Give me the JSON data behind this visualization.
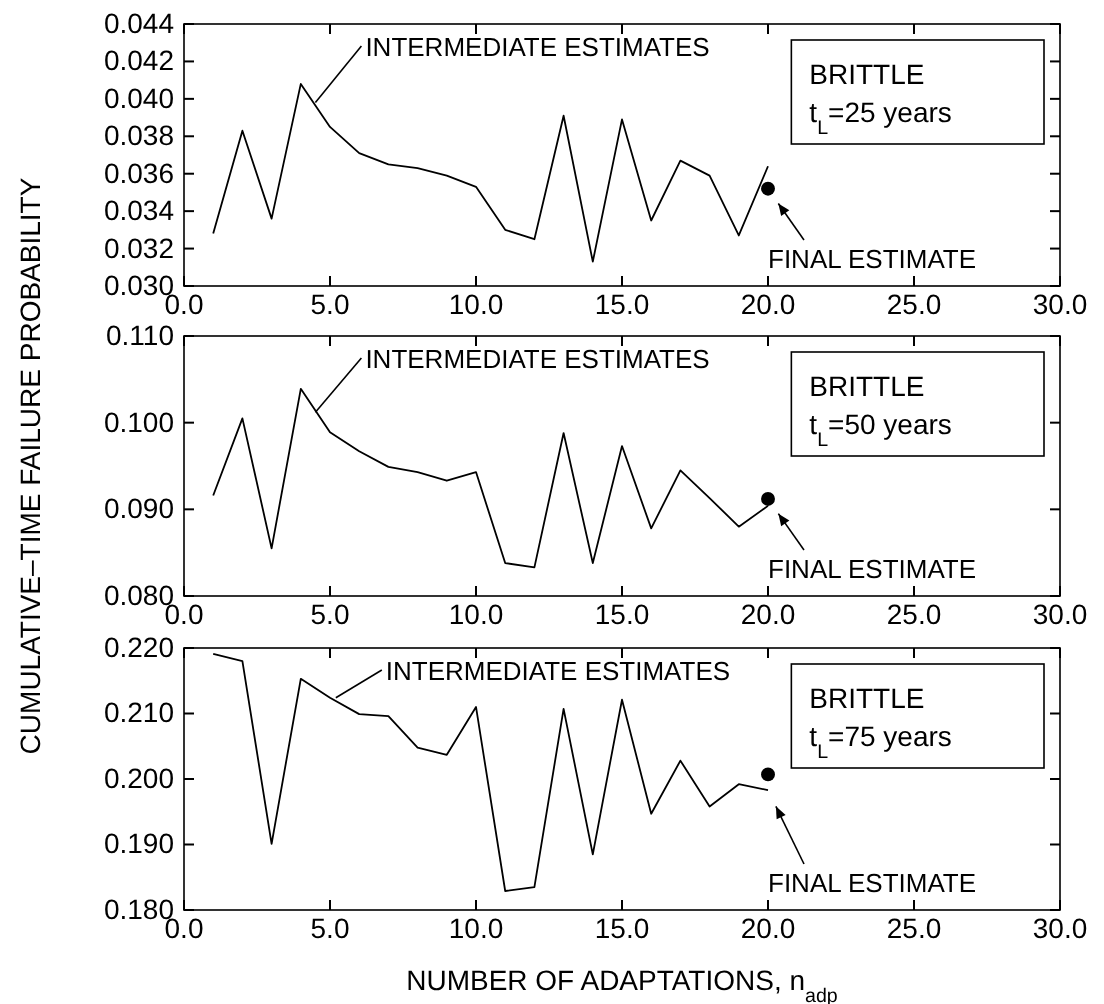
{
  "chart_data": [
    {
      "type": "line",
      "xlim": [
        0,
        30
      ],
      "xticks": [
        {
          "value": 0,
          "label": "0.0"
        },
        {
          "value": 5,
          "label": "5.0"
        },
        {
          "value": 10,
          "label": "10.0"
        },
        {
          "value": 15,
          "label": "15.0"
        },
        {
          "value": 20,
          "label": "20.0"
        },
        {
          "value": 25,
          "label": "25.0"
        },
        {
          "value": 30,
          "label": "30.0"
        }
      ],
      "ylim": [
        0.03,
        0.044
      ],
      "yticks": [
        {
          "value": 0.03,
          "label": "0.030"
        },
        0.032,
        0.034,
        0.036,
        0.038,
        {
          "value": 0.04,
          "label": "0.040"
        },
        0.042,
        0.044
      ],
      "series": [
        {
          "color": "#000000",
          "x": [
            1,
            2,
            3,
            4,
            5,
            6,
            7,
            8,
            9,
            10,
            11,
            12,
            13,
            14,
            15,
            16,
            17,
            18,
            19,
            20
          ],
          "values": [
            0.0328,
            0.0383,
            0.0336,
            0.0408,
            0.0385,
            0.0371,
            0.0365,
            0.0363,
            0.0359,
            0.0353,
            0.033,
            0.0325,
            0.0391,
            0.0313,
            0.0389,
            0.0335,
            0.0367,
            0.0359,
            0.0327,
            0.0364
          ]
        },
        {
          "type": "scatter",
          "color": "#000000",
          "marker": "circle",
          "x": [
            20
          ],
          "values": [
            0.0352
          ]
        }
      ],
      "annotations": [
        {
          "text": "INTERMEDIATE ESTIMATES",
          "x": 4.5,
          "y": 0.0398
        },
        {
          "text": "FINAL ESTIMATE",
          "x": 20,
          "y": 0.0352
        },
        "BRITTLE",
        "t$_{L}$=25 years"
      ]
    },
    {
      "type": "line",
      "xlim": [
        0,
        30
      ],
      "xticks": [
        {
          "value": 0,
          "label": "0.0"
        },
        {
          "value": 5,
          "label": "5.0"
        },
        {
          "value": 10,
          "label": "10.0"
        },
        {
          "value": 15,
          "label": "15.0"
        },
        {
          "value": 20,
          "label": "20.0"
        },
        {
          "value": 25,
          "label": "25.0"
        },
        {
          "value": 30,
          "label": "30.0"
        }
      ],
      "ylim": [
        0.08,
        0.11
      ],
      "yticks": [
        {
          "value": 0.08,
          "label": "0.080"
        },
        {
          "value": 0.09,
          "label": "0.090"
        },
        {
          "value": 0.1,
          "label": "0.100"
        },
        {
          "value": 0.11,
          "label": "0.110"
        }
      ],
      "ylabel": "CUMULATIVE–TIME FAILURE PROBABILITY",
      "series": [
        {
          "color": "#000000",
          "x": [
            1,
            2,
            3,
            4,
            5,
            6,
            7,
            8,
            9,
            10,
            11,
            12,
            13,
            14,
            15,
            16,
            17,
            18,
            19,
            20
          ],
          "values": [
            0.0916,
            0.1005,
            0.0855,
            0.1039,
            0.0989,
            0.0967,
            0.0949,
            0.0943,
            0.0933,
            0.0943,
            0.0838,
            0.0833,
            0.0988,
            0.0838,
            0.0973,
            0.0878,
            0.0945,
            0.0913,
            0.088,
            0.0904
          ]
        },
        {
          "type": "scatter",
          "color": "#000000",
          "marker": "circle",
          "x": [
            20
          ],
          "values": [
            0.0912
          ]
        }
      ],
      "annotations": [
        {
          "text": "INTERMEDIATE ESTIMATES",
          "x": 4.5,
          "y": 0.1012
        },
        {
          "text": "FINAL ESTIMATE",
          "x": 20,
          "y": 0.0912
        },
        "BRITTLE",
        "t$_{L}$=50 years"
      ]
    },
    {
      "type": "line",
      "xlim": [
        0,
        30
      ],
      "xticks": [
        {
          "value": 0,
          "label": "0.0"
        },
        {
          "value": 5,
          "label": "5.0"
        },
        {
          "value": 10,
          "label": "10.0"
        },
        {
          "value": 15,
          "label": "15.0"
        },
        {
          "value": 20,
          "label": "20.0"
        },
        {
          "value": 25,
          "label": "25.0"
        },
        {
          "value": 30,
          "label": "30.0"
        }
      ],
      "ylim": [
        0.18,
        0.22
      ],
      "yticks": [
        {
          "value": 0.18,
          "label": "0.180"
        },
        {
          "value": 0.19,
          "label": "0.190"
        },
        {
          "value": 0.2,
          "label": "0.200"
        },
        {
          "value": 0.21,
          "label": "0.210"
        },
        {
          "value": 0.22,
          "label": "0.220"
        }
      ],
      "xlabel": "NUMBER OF ADAPTATIONS, n$_{adp}$",
      "series": [
        {
          "color": "#000000",
          "x": [
            1,
            2,
            3,
            4,
            5,
            6,
            7,
            8,
            9,
            10,
            11,
            12,
            13,
            14,
            15,
            16,
            17,
            18,
            19,
            20
          ],
          "values": [
            0.2191,
            0.218,
            0.1901,
            0.2153,
            0.2124,
            0.2099,
            0.2096,
            0.2048,
            0.2037,
            0.211,
            0.1829,
            0.1835,
            0.2107,
            0.1885,
            0.2121,
            0.1947,
            0.2028,
            0.1958,
            0.1992,
            0.1983
          ]
        },
        {
          "type": "scatter",
          "color": "#000000",
          "marker": "circle",
          "x": [
            20
          ],
          "values": [
            0.2007
          ]
        }
      ],
      "annotations": [
        {
          "text": "INTERMEDIATE ESTIMATES",
          "x": 5.2,
          "y": 0.2124
        },
        {
          "text": "FINAL ESTIMATE",
          "x": 20,
          "y": 0.1983
        },
        "BRITTLE",
        "t$_{L}$=75 years"
      ]
    }
  ]
}
